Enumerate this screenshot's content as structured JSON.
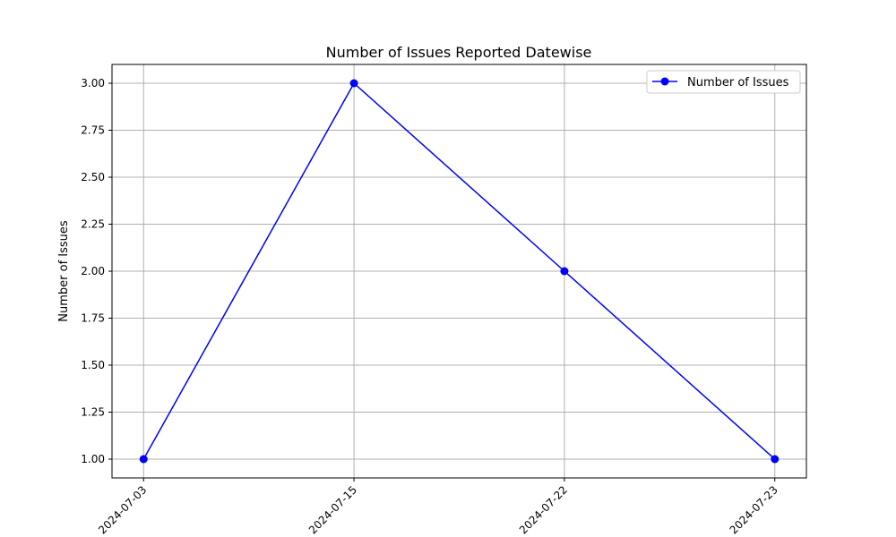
{
  "chart_data": {
    "type": "line",
    "title": "Number of Issues Reported Datewise",
    "xlabel": "",
    "ylabel": "Number of Issues",
    "categories": [
      "2024-07-03",
      "2024-07-15",
      "2024-07-22",
      "2024-07-23"
    ],
    "series": [
      {
        "name": "Number of Issues",
        "values": [
          1,
          3,
          2,
          1
        ],
        "color": "#0000ff",
        "marker": "circle"
      }
    ],
    "ylim": [
      0.9,
      3.1
    ],
    "yticks": [
      1.0,
      1.25,
      1.5,
      1.75,
      2.0,
      2.25,
      2.5,
      2.75,
      3.0
    ],
    "ytick_labels": [
      "1.00",
      "1.25",
      "1.50",
      "1.75",
      "2.00",
      "2.25",
      "2.50",
      "2.75",
      "3.00"
    ],
    "grid": true,
    "legend_position": "top-right",
    "xtick_rotation_deg": 45
  }
}
